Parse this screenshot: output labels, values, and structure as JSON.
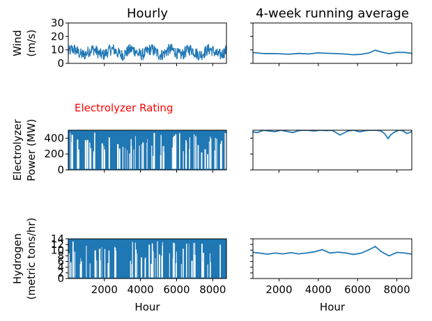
{
  "chart_data": [
    {
      "type": "line",
      "title": "Hourly",
      "ylabel_lines": [
        "Wind",
        "(m/s)"
      ],
      "xlabel": "",
      "xlim": [
        0,
        8760
      ],
      "ylim": [
        0,
        30
      ],
      "yticks": [
        0,
        10,
        20,
        30
      ],
      "xticks": [
        2000,
        4000,
        6000,
        8000
      ],
      "show_xtick_labels": false,
      "show_ytick_labels": true,
      "series": [
        {
          "style": "noisy-band",
          "base": 7,
          "swing": 9,
          "floor": 0,
          "ceil": 18
        }
      ]
    },
    {
      "type": "line",
      "title": "4-week running average",
      "ylabel_lines": [],
      "xlabel": "",
      "xlim": [
        672,
        8760
      ],
      "ylim": [
        0,
        30
      ],
      "yticks": [
        0,
        10,
        20,
        30
      ],
      "xticks": [
        2000,
        4000,
        6000,
        8000
      ],
      "show_xtick_labels": false,
      "show_ytick_labels": false,
      "series": [
        {
          "style": "smooth",
          "x": [
            672,
            1200,
            2000,
            2500,
            3000,
            3500,
            4000,
            4400,
            4800,
            5300,
            5800,
            6200,
            6600,
            6900,
            7200,
            7600,
            8000,
            8400,
            8760
          ],
          "y": [
            8.0,
            7.3,
            7.2,
            6.8,
            7.4,
            7.0,
            7.8,
            7.5,
            7.3,
            7.0,
            6.4,
            6.7,
            7.8,
            9.8,
            8.5,
            7.2,
            8.2,
            8.1,
            7.4
          ]
        }
      ]
    },
    {
      "type": "line",
      "title": "",
      "annotation": {
        "text": "Electrolyzer Rating",
        "color": "#ff0000"
      },
      "ylabel_lines": [
        "Electrolyzer",
        "Power (MW)"
      ],
      "xlabel": "",
      "xlim": [
        0,
        8760
      ],
      "ylim": [
        0,
        500
      ],
      "yticks": [
        0,
        200,
        400
      ],
      "xticks": [
        2000,
        4000,
        6000,
        8000
      ],
      "show_xtick_labels": false,
      "show_ytick_labels": true,
      "series": [
        {
          "style": "dense-fill",
          "base": 500,
          "floor": 0,
          "ceil": 500
        }
      ]
    },
    {
      "type": "line",
      "title": "",
      "ylabel_lines": [],
      "xlabel": "",
      "xlim": [
        672,
        8760
      ],
      "ylim": [
        0,
        500
      ],
      "yticks": [
        0,
        200,
        400
      ],
      "xticks": [
        2000,
        4000,
        6000,
        8000
      ],
      "show_xtick_labels": false,
      "show_ytick_labels": false,
      "series": [
        {
          "style": "smooth",
          "x": [
            672,
            900,
            1200,
            1500,
            1800,
            2100,
            2400,
            2700,
            3000,
            3300,
            3500,
            3800,
            4100,
            4400,
            4700,
            4900,
            5100,
            5300,
            5500,
            5800,
            6100,
            6400,
            6700,
            7000,
            7200,
            7400,
            7550,
            7700,
            7900,
            8100,
            8300,
            8500,
            8700,
            8760
          ],
          "y": [
            480,
            470,
            498,
            490,
            482,
            500,
            485,
            470,
            495,
            500,
            498,
            490,
            500,
            495,
            500,
            470,
            440,
            465,
            490,
            500,
            480,
            495,
            500,
            498,
            490,
            450,
            395,
            445,
            480,
            500,
            495,
            460,
            475,
            488
          ]
        }
      ]
    },
    {
      "type": "line",
      "title": "",
      "ylabel_lines": [
        "Hydrogen",
        "(metric tons/hr)"
      ],
      "xlabel": "Hour",
      "xlim": [
        0,
        8760
      ],
      "ylim": [
        0,
        14
      ],
      "yticks": [
        0,
        2,
        4,
        6,
        8,
        10,
        12,
        14
      ],
      "xticks": [
        2000,
        4000,
        6000,
        8000
      ],
      "show_xtick_labels": true,
      "show_ytick_labels": true,
      "series": [
        {
          "style": "dense-fill",
          "base": 14,
          "floor": 0,
          "ceil": 14
        }
      ]
    },
    {
      "type": "line",
      "title": "",
      "ylabel_lines": [],
      "xlabel": "Hour",
      "xlim": [
        672,
        8760
      ],
      "ylim": [
        0,
        14
      ],
      "yticks": [
        0,
        2,
        4,
        6,
        8,
        10,
        12,
        14
      ],
      "xticks": [
        2000,
        4000,
        6000,
        8000
      ],
      "show_xtick_labels": true,
      "show_ytick_labels": false,
      "series": [
        {
          "style": "smooth",
          "x": [
            672,
            1000,
            1400,
            1800,
            2200,
            2600,
            3000,
            3400,
            3800,
            4200,
            4600,
            5000,
            5400,
            5800,
            6200,
            6600,
            6900,
            7200,
            7600,
            8000,
            8400,
            8760
          ],
          "y": [
            9.2,
            9.0,
            8.6,
            9.0,
            8.7,
            9.1,
            8.7,
            9.0,
            9.4,
            10.2,
            9.0,
            9.3,
            9.0,
            8.5,
            9.0,
            10.2,
            11.3,
            9.5,
            8.0,
            9.2,
            9.0,
            8.6
          ]
        }
      ]
    }
  ],
  "colors": {
    "line": "#1f77b4",
    "annotation": "#ff0000"
  }
}
